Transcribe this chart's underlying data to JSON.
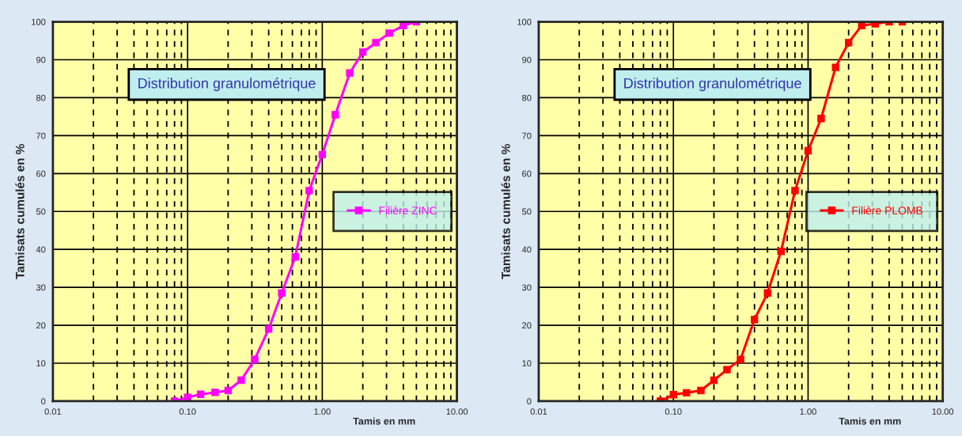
{
  "chart_data": [
    {
      "type": "line",
      "title": "Distribution granulométrique",
      "xlabel": "Tamis en mm",
      "ylabel": "Tamisats cumulés en %",
      "log": "x",
      "xlim": [
        0.01,
        10
      ],
      "xticks": [
        {
          "value": 0.01,
          "label": "0.01"
        },
        {
          "value": 0.1,
          "label": "0.10"
        },
        {
          "value": 1,
          "label": "1.00"
        },
        {
          "value": 10,
          "label": "10.00"
        }
      ],
      "ylim": [
        0,
        100
      ],
      "yticks": [
        0,
        10,
        20,
        30,
        40,
        50,
        60,
        70,
        80,
        90,
        100
      ],
      "grid": true,
      "legend": "right",
      "marker": "square",
      "line_style": "solid",
      "x": [
        0.08,
        0.1,
        0.125,
        0.16,
        0.2,
        0.25,
        0.315,
        0.4,
        0.5,
        0.63,
        0.8,
        1.0,
        1.25,
        1.6,
        2.0,
        2.5,
        3.15,
        4,
        5
      ],
      "series": [
        {
          "name": "Filière ZINC",
          "color": "#ff00ff",
          "values": [
            0,
            1,
            1.8,
            2.3,
            2.8,
            5.5,
            11,
            19,
            28.5,
            38,
            55.5,
            65,
            75.5,
            86.5,
            92,
            94.5,
            97,
            99,
            100
          ]
        }
      ]
    },
    {
      "type": "line",
      "title": "Distribution granulométrique",
      "xlabel": "Tamis en mm",
      "ylabel": "Tamisats cumulés en %",
      "log": "x",
      "xlim": [
        0.01,
        10
      ],
      "xticks": [
        {
          "value": 0.01,
          "label": "0.01"
        },
        {
          "value": 0.1,
          "label": "0.10"
        },
        {
          "value": 1,
          "label": "1.00"
        },
        {
          "value": 10,
          "label": "10.00"
        }
      ],
      "ylim": [
        0,
        100
      ],
      "yticks": [
        0,
        10,
        20,
        30,
        40,
        50,
        60,
        70,
        80,
        90,
        100
      ],
      "grid": true,
      "legend": "right",
      "marker": "square",
      "line_style": "solid",
      "x": [
        0.08,
        0.1,
        0.125,
        0.16,
        0.2,
        0.25,
        0.315,
        0.4,
        0.5,
        0.63,
        0.8,
        1.0,
        1.25,
        1.6,
        2.0,
        2.5,
        3.15,
        4,
        5
      ],
      "series": [
        {
          "name": "Filière PLOMB",
          "color": "#ff0000",
          "values": [
            0,
            1.7,
            2.2,
            2.8,
            5.5,
            8.3,
            11,
            21.5,
            28.5,
            39.5,
            55.5,
            66,
            74.5,
            88,
            94.5,
            99,
            99.5,
            100,
            100
          ]
        }
      ]
    }
  ]
}
